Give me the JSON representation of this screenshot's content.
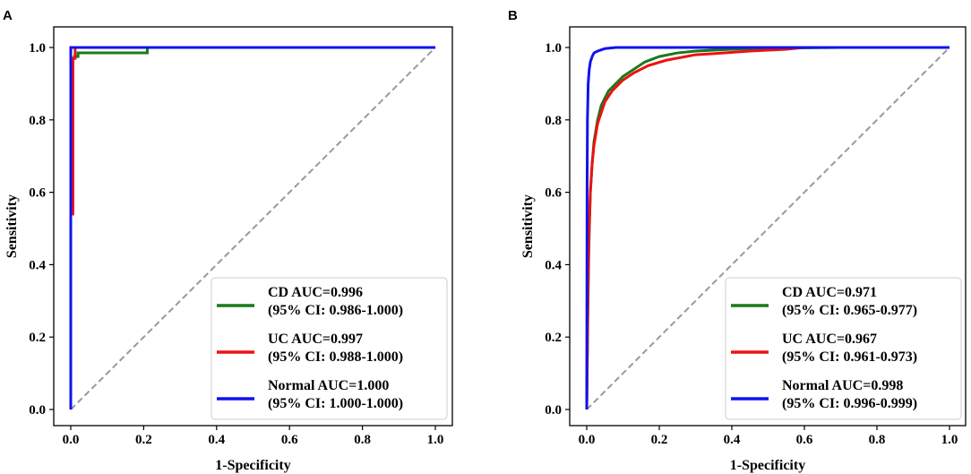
{
  "chart_data": [
    {
      "panel": "A",
      "type": "line",
      "xlabel": "1-Specificity",
      "ylabel": "Sensitivity",
      "xlim": [
        0,
        1
      ],
      "ylim": [
        0,
        1
      ],
      "x_ticks": [
        "0.0",
        "0.2",
        "0.4",
        "0.6",
        "0.8",
        "1.0"
      ],
      "y_ticks": [
        "0.0",
        "0.2",
        "0.4",
        "0.6",
        "0.8",
        "1.0"
      ],
      "legend_position": "lower-right",
      "reference_line": {
        "name": "chance",
        "color": "#999999",
        "style": "dashed",
        "points": [
          [
            0,
            0
          ],
          [
            1,
            1
          ]
        ]
      },
      "series": [
        {
          "name": "CD",
          "label": "CD AUC=0.996",
          "ci": "(95% CI: 0.986-1.000)",
          "color": "#1a7a1a",
          "points": [
            [
              0,
              0
            ],
            [
              0,
              0.97
            ],
            [
              0.01,
              0.97
            ],
            [
              0.01,
              0.975
            ],
            [
              0.02,
              0.975
            ],
            [
              0.02,
              0.985
            ],
            [
              0.21,
              0.985
            ],
            [
              0.21,
              1.0
            ],
            [
              1,
              1
            ]
          ]
        },
        {
          "name": "UC",
          "label": "UC AUC=0.997",
          "ci": "(95% CI: 0.988-1.000)",
          "color": "#ee1111",
          "points": [
            [
              0,
              0
            ],
            [
              0,
              0.54
            ],
            [
              0.006,
              0.54
            ],
            [
              0.006,
              0.97
            ],
            [
              0.012,
              0.97
            ],
            [
              0.012,
              1.0
            ],
            [
              1,
              1
            ]
          ]
        },
        {
          "name": "Normal",
          "label": "Normal AUC=1.000",
          "ci": "(95% CI: 1.000-1.000)",
          "color": "#1111ee",
          "points": [
            [
              0,
              0
            ],
            [
              0,
              1.0
            ],
            [
              1,
              1
            ]
          ]
        }
      ]
    },
    {
      "panel": "B",
      "type": "line",
      "xlabel": "1-Specificity",
      "ylabel": "Sensitivity",
      "xlim": [
        0,
        1
      ],
      "ylim": [
        0,
        1
      ],
      "x_ticks": [
        "0.0",
        "0.2",
        "0.4",
        "0.6",
        "0.8",
        "1.0"
      ],
      "y_ticks": [
        "0.0",
        "0.2",
        "0.4",
        "0.6",
        "0.8",
        "1.0"
      ],
      "legend_position": "lower-right",
      "reference_line": {
        "name": "chance",
        "color": "#999999",
        "style": "dashed",
        "points": [
          [
            0,
            0
          ],
          [
            1,
            1
          ]
        ]
      },
      "series": [
        {
          "name": "CD",
          "label": "CD AUC=0.971",
          "ci": "(95% CI: 0.965-0.977)",
          "color": "#1a7a1a",
          "points": [
            [
              0,
              0
            ],
            [
              0.003,
              0.25
            ],
            [
              0.006,
              0.45
            ],
            [
              0.01,
              0.6
            ],
            [
              0.015,
              0.68
            ],
            [
              0.02,
              0.74
            ],
            [
              0.03,
              0.8
            ],
            [
              0.04,
              0.84
            ],
            [
              0.05,
              0.86
            ],
            [
              0.06,
              0.88
            ],
            [
              0.08,
              0.9
            ],
            [
              0.1,
              0.92
            ],
            [
              0.13,
              0.94
            ],
            [
              0.16,
              0.96
            ],
            [
              0.2,
              0.975
            ],
            [
              0.25,
              0.985
            ],
            [
              0.3,
              0.99
            ],
            [
              0.4,
              0.995
            ],
            [
              0.5,
              0.998
            ],
            [
              0.7,
              1.0
            ],
            [
              1,
              1
            ]
          ]
        },
        {
          "name": "UC",
          "label": "UC AUC=0.967",
          "ci": "(95% CI: 0.961-0.973)",
          "color": "#ee1111",
          "points": [
            [
              0,
              0
            ],
            [
              0.003,
              0.3
            ],
            [
              0.006,
              0.48
            ],
            [
              0.01,
              0.6
            ],
            [
              0.015,
              0.68
            ],
            [
              0.02,
              0.73
            ],
            [
              0.03,
              0.79
            ],
            [
              0.04,
              0.82
            ],
            [
              0.05,
              0.85
            ],
            [
              0.07,
              0.88
            ],
            [
              0.1,
              0.91
            ],
            [
              0.13,
              0.93
            ],
            [
              0.17,
              0.95
            ],
            [
              0.22,
              0.965
            ],
            [
              0.3,
              0.98
            ],
            [
              0.35,
              0.983
            ],
            [
              0.45,
              0.99
            ],
            [
              0.55,
              0.995
            ],
            [
              0.6,
              1.0
            ],
            [
              1,
              1
            ]
          ]
        },
        {
          "name": "Normal",
          "label": "Normal AUC=0.998",
          "ci": "(95% CI: 0.996-0.999)",
          "color": "#1111ee",
          "points": [
            [
              0,
              0
            ],
            [
              0.001,
              0.6
            ],
            [
              0.002,
              0.8
            ],
            [
              0.004,
              0.9
            ],
            [
              0.007,
              0.94
            ],
            [
              0.01,
              0.96
            ],
            [
              0.015,
              0.975
            ],
            [
              0.02,
              0.985
            ],
            [
              0.03,
              0.99
            ],
            [
              0.05,
              0.997
            ],
            [
              0.08,
              1.0
            ],
            [
              1,
              1
            ]
          ]
        }
      ]
    }
  ]
}
